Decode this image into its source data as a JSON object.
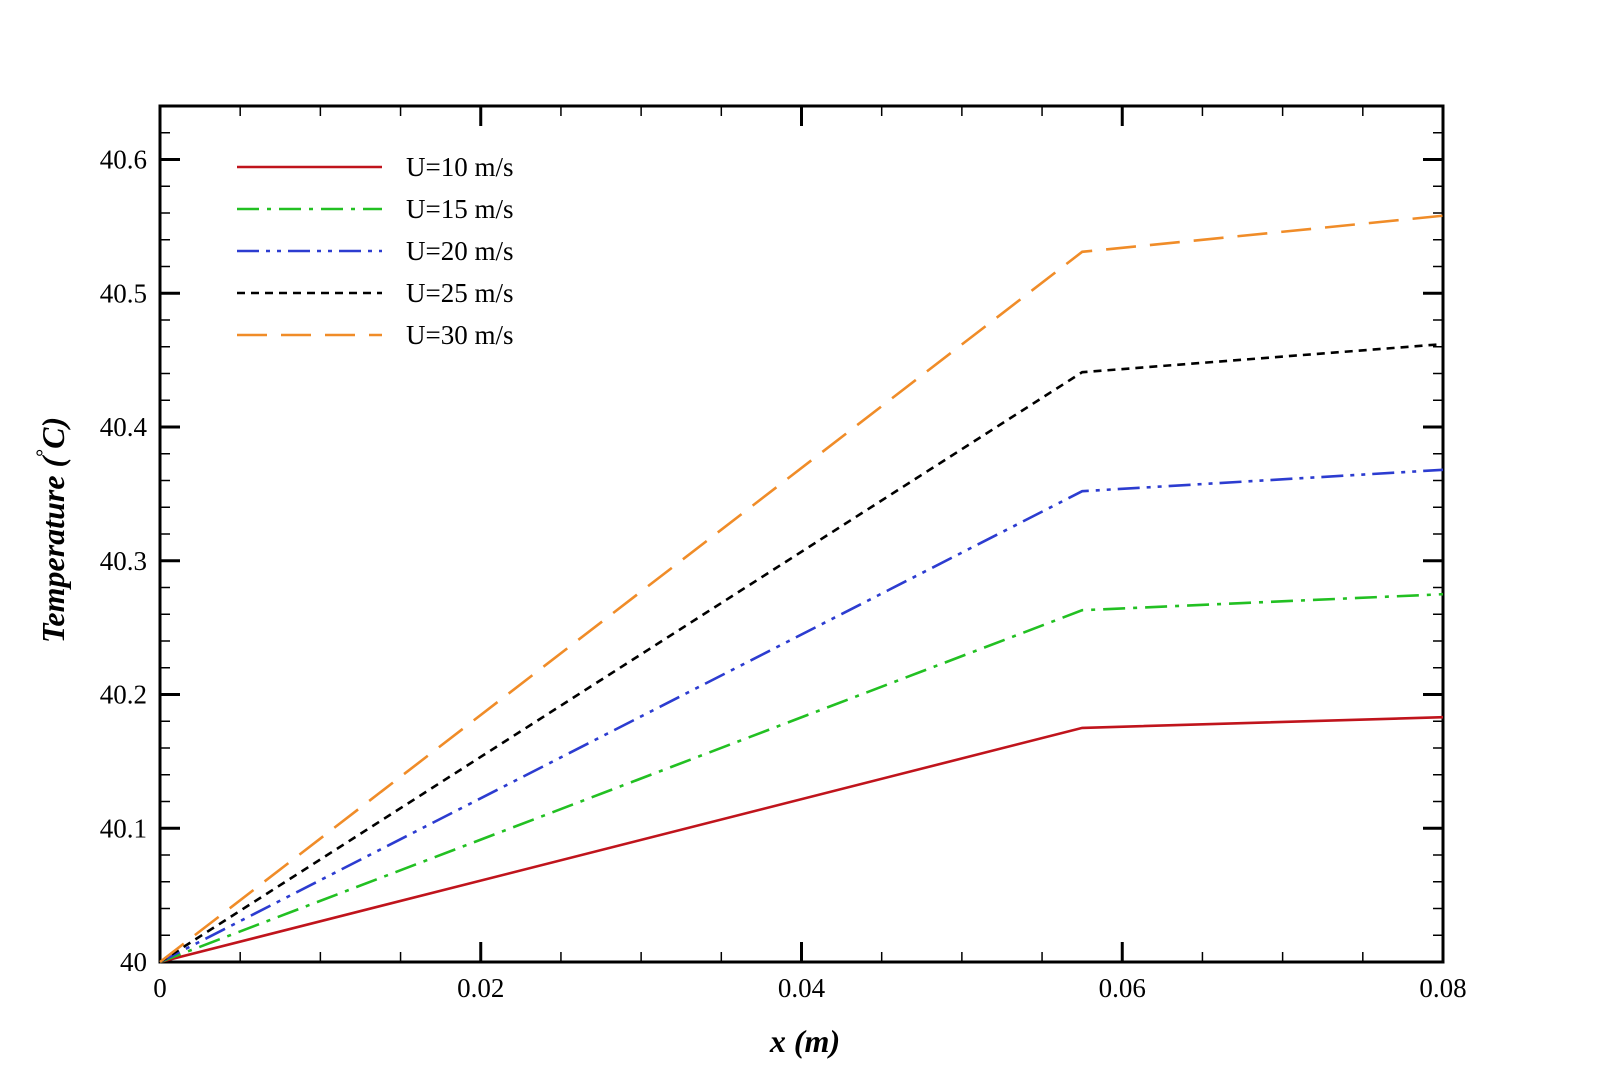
{
  "chart_data": {
    "type": "line",
    "xlabel": "x (m)",
    "ylabel_main": "Temperature (",
    "ylabel_unit": "C)",
    "ylabel_degree": "°",
    "xlim": [
      0,
      0.08
    ],
    "ylim": [
      40,
      40.64
    ],
    "x_ticks": [
      0,
      0.02,
      0.04,
      0.06,
      0.08
    ],
    "x_tick_labels": [
      "0",
      "0.02",
      "0.04",
      "0.06",
      "0.08"
    ],
    "y_ticks": [
      40,
      40.1,
      40.2,
      40.3,
      40.4,
      40.5,
      40.6
    ],
    "y_tick_labels": [
      "40",
      "40.1",
      "40.2",
      "40.3",
      "40.4",
      "40.5",
      "40.6"
    ],
    "grid": false,
    "legend_position": "top-left",
    "series": [
      {
        "name": "U=10 m/s",
        "color": "#c0141c",
        "dash": "solid",
        "x": [
          0,
          0.0575,
          0.08
        ],
        "y": [
          40.0,
          40.175,
          40.183
        ]
      },
      {
        "name": "U=15 m/s",
        "color": "#22c022",
        "dash": "dash-dot",
        "x": [
          0,
          0.0575,
          0.08
        ],
        "y": [
          40.0,
          40.263,
          40.275
        ]
      },
      {
        "name": "U=20 m/s",
        "color": "#2c3cd0",
        "dash": "dash-dot-dot",
        "x": [
          0,
          0.0575,
          0.08
        ],
        "y": [
          40.0,
          40.352,
          40.368
        ]
      },
      {
        "name": "U=25 m/s",
        "color": "#000000",
        "dash": "dotted",
        "x": [
          0,
          0.0575,
          0.08
        ],
        "y": [
          40.0,
          40.441,
          40.462
        ]
      },
      {
        "name": "U=30 m/s",
        "color": "#f08c28",
        "dash": "long-dash",
        "x": [
          0,
          0.0575,
          0.08
        ],
        "y": [
          40.0,
          40.531,
          40.558
        ]
      }
    ]
  }
}
